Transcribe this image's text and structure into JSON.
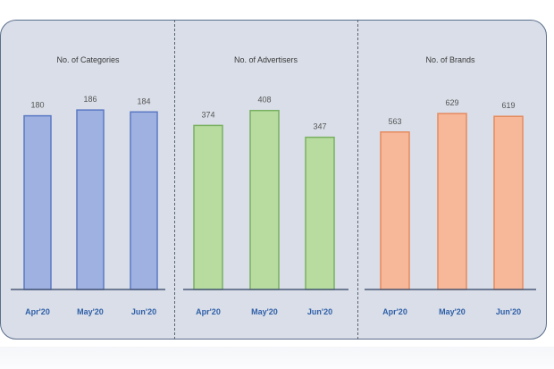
{
  "chart_data": [
    {
      "type": "bar",
      "title": "No. of Categories",
      "categories": [
        "Apr'20",
        "May'20",
        "Jun'20"
      ],
      "values": [
        180,
        186,
        184
      ],
      "ylim": [
        0,
        200
      ],
      "colors": {
        "fill": "#9fb1e0",
        "stroke": "#5b79c4"
      }
    },
    {
      "type": "bar",
      "title": "No. of Advertisers",
      "categories": [
        "Apr'20",
        "May'20",
        "Jun'20"
      ],
      "values": [
        374,
        408,
        347
      ],
      "ylim": [
        0,
        440
      ],
      "colors": {
        "fill": "#b8dca0",
        "stroke": "#78b060"
      }
    },
    {
      "type": "bar",
      "title": "No. of Brands",
      "categories": [
        "Apr'20",
        "May'20",
        "Jun'20"
      ],
      "values": [
        563,
        629,
        619
      ],
      "ylim": [
        0,
        690
      ],
      "colors": {
        "fill": "#f7b89a",
        "stroke": "#e58a5e"
      }
    }
  ],
  "colors": {
    "panel_bg": "#d9dee8",
    "axis": "#4a5a78",
    "tick_text": "#2f5fa8"
  }
}
